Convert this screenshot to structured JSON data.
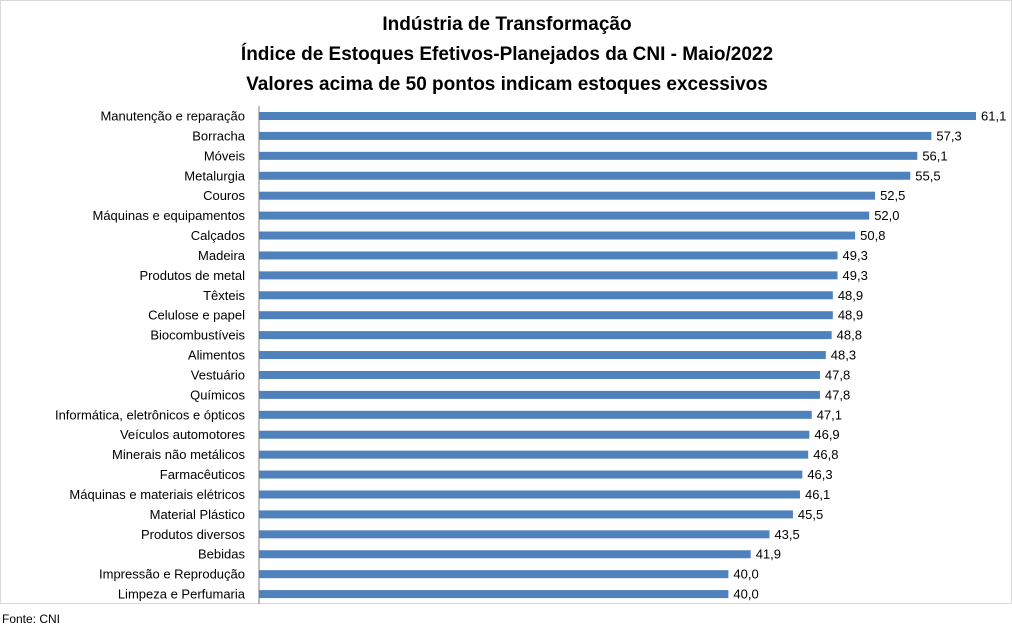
{
  "chart_data": {
    "type": "bar",
    "orientation": "horizontal",
    "title": [
      "Indústria de Transformação",
      "Índice de Estoques Efetivos-Planejados da CNI - Maio/2022",
      "Valores acima de 50 pontos indicam estoques excessivos"
    ],
    "categories": [
      "Manutenção e reparação",
      "Borracha",
      "Móveis",
      "Metalurgia",
      "Couros",
      "Máquinas e equipamentos",
      "Calçados",
      "Madeira",
      "Produtos de metal",
      "Têxteis",
      "Celulose e papel",
      "Biocombustíveis",
      "Alimentos",
      "Vestuário",
      "Químicos",
      "Informática, eletrônicos e ópticos",
      "Veículos automotores",
      "Minerais não metálicos",
      "Farmacêuticos",
      "Máquinas e materiais elétricos",
      "Material Plástico",
      "Produtos diversos",
      "Bebidas",
      "Impressão e Reprodução",
      "Limpeza e Perfumaria"
    ],
    "values": [
      61.1,
      57.3,
      56.1,
      55.5,
      52.5,
      52.0,
      50.8,
      49.3,
      49.3,
      48.9,
      48.9,
      48.8,
      48.3,
      47.8,
      47.8,
      47.1,
      46.9,
      46.8,
      46.3,
      46.1,
      45.5,
      43.5,
      41.9,
      40.0,
      40.0
    ],
    "value_labels": [
      "61,1",
      "57,3",
      "56,1",
      "55,5",
      "52,5",
      "52,0",
      "50,8",
      "49,3",
      "49,3",
      "48,9",
      "48,9",
      "48,8",
      "48,3",
      "47,8",
      "47,8",
      "47,1",
      "46,9",
      "46,8",
      "46,3",
      "46,1",
      "45,5",
      "43,5",
      "41,9",
      "40,0",
      "40,0"
    ],
    "xlim": [
      0,
      61.1
    ],
    "grid": false,
    "legend": "none",
    "bar_color": "#4f81bd"
  },
  "source": "Fonte: CNI"
}
